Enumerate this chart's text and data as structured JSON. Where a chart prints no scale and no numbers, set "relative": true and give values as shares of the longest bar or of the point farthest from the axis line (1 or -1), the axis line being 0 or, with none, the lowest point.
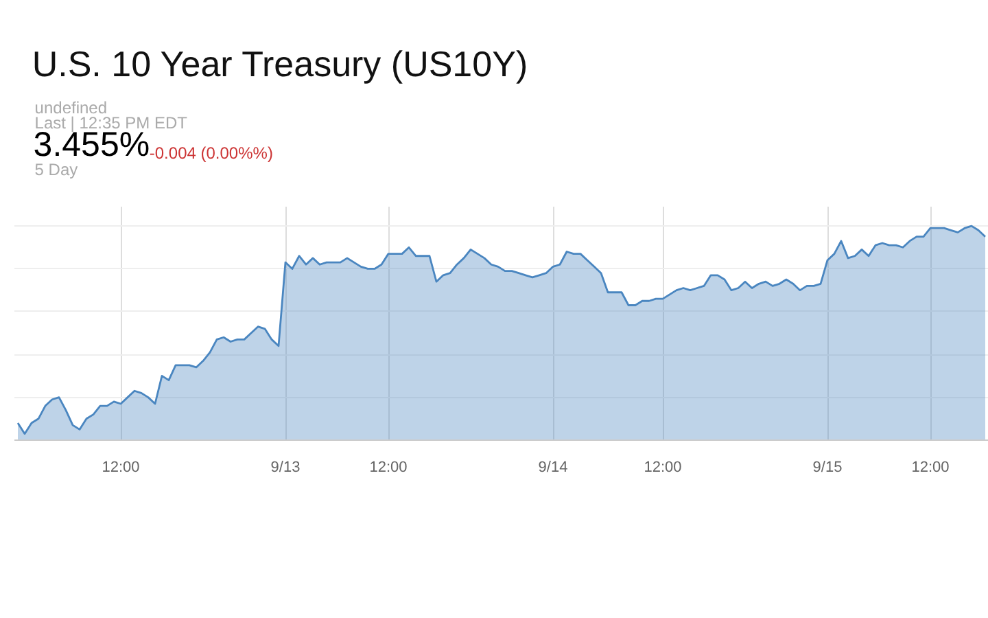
{
  "chart_data": {
    "type": "area",
    "title": "U.S. 10 Year Treasury (US10Y)",
    "annotations": [
      "undefined",
      "Last | 12:35 PM EDT",
      "3.455%",
      "-0.004 (0.00%%)",
      "5 Day"
    ],
    "relative": true,
    "color": "#4a86c0",
    "grid": true,
    "categories": [
      null,
      null,
      null,
      null,
      null,
      null,
      null,
      null,
      null,
      null,
      null,
      null,
      null,
      null,
      null,
      "12:00",
      null,
      null,
      null,
      null,
      null,
      null,
      null,
      null,
      null,
      null,
      null,
      null,
      null,
      null,
      null,
      null,
      null,
      null,
      null,
      null,
      null,
      null,
      null,
      "9/13",
      null,
      null,
      null,
      null,
      null,
      null,
      null,
      null,
      null,
      null,
      null,
      null,
      null,
      null,
      "12:00",
      null,
      null,
      null,
      null,
      null,
      null,
      null,
      null,
      null,
      null,
      null,
      null,
      null,
      null,
      null,
      null,
      null,
      null,
      null,
      null,
      null,
      null,
      null,
      "9/14",
      null,
      null,
      null,
      null,
      null,
      null,
      null,
      null,
      null,
      null,
      null,
      null,
      null,
      null,
      null,
      "12:00",
      null,
      null,
      null,
      null,
      null,
      null,
      null,
      null,
      null,
      null,
      null,
      null,
      null,
      null,
      null,
      null,
      null,
      null,
      null,
      null,
      null,
      null,
      null,
      "9/15",
      null,
      null,
      null,
      null,
      null,
      null,
      null,
      null,
      null,
      null,
      null,
      null,
      null,
      null,
      "12:00",
      null,
      null,
      null,
      null,
      null,
      null,
      null,
      null
    ],
    "values": [
      0.08,
      0.03,
      0.08,
      0.1,
      0.16,
      0.19,
      0.2,
      0.14,
      0.07,
      0.05,
      0.1,
      0.12,
      0.16,
      0.16,
      0.18,
      0.17,
      0.2,
      0.23,
      0.22,
      0.2,
      0.17,
      0.3,
      0.28,
      0.35,
      0.35,
      0.35,
      0.34,
      0.37,
      0.41,
      0.47,
      0.48,
      0.46,
      0.47,
      0.47,
      0.5,
      0.53,
      0.52,
      0.47,
      0.44,
      0.83,
      0.8,
      0.86,
      0.82,
      0.85,
      0.82,
      0.83,
      0.83,
      0.83,
      0.85,
      0.83,
      0.81,
      0.8,
      0.8,
      0.82,
      0.87,
      0.87,
      0.87,
      0.9,
      0.86,
      0.86,
      0.86,
      0.74,
      0.77,
      0.78,
      0.82,
      0.85,
      0.89,
      0.87,
      0.85,
      0.82,
      0.81,
      0.79,
      0.79,
      0.78,
      0.77,
      0.76,
      0.77,
      0.78,
      0.81,
      0.82,
      0.88,
      0.87,
      0.87,
      0.84,
      0.81,
      0.78,
      0.69,
      0.69,
      0.69,
      0.63,
      0.63,
      0.65,
      0.65,
      0.66,
      0.66,
      0.68,
      0.7,
      0.71,
      0.7,
      0.71,
      0.72,
      0.77,
      0.77,
      0.75,
      0.7,
      0.71,
      0.74,
      0.71,
      0.73,
      0.74,
      0.72,
      0.73,
      0.75,
      0.73,
      0.7,
      0.72,
      0.72,
      0.73,
      0.84,
      0.87,
      0.93,
      0.85,
      0.86,
      0.89,
      0.86,
      0.91,
      0.92,
      0.91,
      0.91,
      0.9,
      0.93,
      0.95,
      0.95,
      0.99,
      0.99,
      0.99,
      0.98,
      0.97,
      0.99,
      1.0,
      0.98,
      0.95
    ]
  }
}
